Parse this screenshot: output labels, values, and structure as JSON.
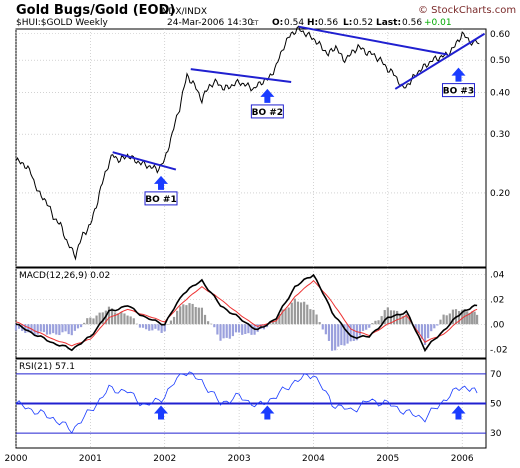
{
  "header": {
    "title": "Gold Bugs/Gold (EOD)",
    "exchange": "INDX/INDX",
    "date": "24-Mar-2006 14:30",
    "tz": "ET",
    "open_label": "O:",
    "open": "0.54",
    "high_label": "H:",
    "high": "0.56",
    "low_label": "L:",
    "low": "0.52",
    "last_label": "Last:",
    "last": "0.56",
    "change": "+0.01",
    "symbol": "$HUI:$GOLD Weekly",
    "copyright": "© StockCharts.com"
  },
  "chart_data": [
    {
      "type": "line",
      "panel": "price",
      "scale": "log",
      "ylim": [
        0.12,
        0.62
      ],
      "yticks": [
        "0.60",
        "0.50",
        "0.40",
        "0.30",
        "0.20"
      ],
      "ytick_values": [
        0.6,
        0.5,
        0.4,
        0.3,
        0.2
      ],
      "x": [
        2000.0,
        2000.1,
        2000.2,
        2000.3,
        2000.4,
        2000.5,
        2000.6,
        2000.7,
        2000.8,
        2000.9,
        2001.0,
        2001.1,
        2001.2,
        2001.3,
        2001.4,
        2001.5,
        2001.6,
        2001.7,
        2001.8,
        2001.9,
        2002.0,
        2002.1,
        2002.2,
        2002.3,
        2002.4,
        2002.5,
        2002.6,
        2002.7,
        2002.8,
        2002.9,
        2003.0,
        2003.1,
        2003.2,
        2003.3,
        2003.4,
        2003.5,
        2003.6,
        2003.7,
        2003.8,
        2003.9,
        2004.0,
        2004.1,
        2004.2,
        2004.3,
        2004.4,
        2004.5,
        2004.6,
        2004.7,
        2004.8,
        2004.9,
        2005.0,
        2005.1,
        2005.2,
        2005.3,
        2005.4,
        2005.5,
        2005.6,
        2005.7,
        2005.8,
        2005.9,
        2006.0,
        2006.1,
        2006.23
      ],
      "values": [
        0.25,
        0.245,
        0.23,
        0.2,
        0.19,
        0.17,
        0.16,
        0.14,
        0.13,
        0.15,
        0.16,
        0.19,
        0.23,
        0.26,
        0.25,
        0.26,
        0.25,
        0.245,
        0.24,
        0.235,
        0.25,
        0.3,
        0.36,
        0.45,
        0.42,
        0.38,
        0.42,
        0.43,
        0.41,
        0.42,
        0.43,
        0.42,
        0.41,
        0.43,
        0.44,
        0.48,
        0.55,
        0.6,
        0.62,
        0.6,
        0.58,
        0.55,
        0.52,
        0.55,
        0.5,
        0.52,
        0.55,
        0.53,
        0.52,
        0.5,
        0.47,
        0.45,
        0.41,
        0.43,
        0.46,
        0.48,
        0.5,
        0.51,
        0.52,
        0.55,
        0.6,
        0.57,
        0.56
      ],
      "trendlines": [
        {
          "x": [
            2001.3,
            2002.15
          ],
          "y": [
            0.265,
            0.235
          ]
        },
        {
          "x": [
            2002.35,
            2003.7
          ],
          "y": [
            0.47,
            0.43
          ]
        },
        {
          "x": [
            2003.8,
            2005.8
          ],
          "y": [
            0.63,
            0.52
          ]
        },
        {
          "x": [
            2005.1,
            2006.3
          ],
          "y": [
            0.41,
            0.6
          ]
        }
      ],
      "annotations": [
        {
          "label": "BO #1",
          "x": 2001.95,
          "y": 0.225
        },
        {
          "label": "BO #2",
          "x": 2003.38,
          "y": 0.41
        },
        {
          "label": "BO #3",
          "x": 2005.95,
          "y": 0.475
        }
      ]
    },
    {
      "type": "line",
      "panel": "macd",
      "title": "MACD(12,26,9) 0.02",
      "ylim": [
        -0.027,
        0.045
      ],
      "yticks": [
        ".04",
        ".02",
        ".00",
        "-.02"
      ],
      "ytick_values": [
        0.04,
        0.02,
        0.0,
        -0.02
      ],
      "x": [
        2000.0,
        2000.25,
        2000.5,
        2000.75,
        2001.0,
        2001.25,
        2001.5,
        2001.75,
        2002.0,
        2002.25,
        2002.5,
        2002.75,
        2003.0,
        2003.25,
        2003.5,
        2003.75,
        2004.0,
        2004.25,
        2004.5,
        2004.75,
        2005.0,
        2005.25,
        2005.5,
        2005.75,
        2006.0,
        2006.2
      ],
      "series": [
        {
          "values": [
            0.0,
            -0.008,
            -0.015,
            -0.02,
            -0.01,
            0.01,
            0.015,
            0.005,
            0.0,
            0.025,
            0.035,
            0.015,
            0.005,
            -0.005,
            0.005,
            0.03,
            0.04,
            0.01,
            -0.01,
            -0.01,
            0.005,
            0.01,
            -0.02,
            -0.005,
            0.01,
            0.015
          ]
        },
        {
          "values": [
            0.002,
            -0.005,
            -0.012,
            -0.017,
            -0.012,
            0.005,
            0.012,
            0.007,
            0.002,
            0.018,
            0.03,
            0.02,
            0.008,
            -0.002,
            0.003,
            0.022,
            0.035,
            0.018,
            -0.004,
            -0.009,
            0.0,
            0.007,
            -0.014,
            -0.008,
            0.005,
            0.012
          ]
        }
      ]
    },
    {
      "type": "line",
      "panel": "rsi",
      "title": "RSI(21) 57.1",
      "ylim": [
        20,
        80
      ],
      "yticks": [
        "70",
        "50",
        "30"
      ],
      "ytick_values": [
        70,
        50,
        30
      ],
      "x": [
        2000.0,
        2000.25,
        2000.5,
        2000.75,
        2001.0,
        2001.25,
        2001.5,
        2001.75,
        2002.0,
        2002.25,
        2002.5,
        2002.75,
        2003.0,
        2003.25,
        2003.5,
        2003.75,
        2004.0,
        2004.25,
        2004.5,
        2004.75,
        2005.0,
        2005.25,
        2005.5,
        2005.75,
        2006.0,
        2006.2
      ],
      "values": [
        50,
        45,
        40,
        32,
        45,
        60,
        58,
        48,
        55,
        72,
        65,
        50,
        55,
        48,
        55,
        65,
        70,
        50,
        45,
        52,
        50,
        44,
        40,
        52,
        62,
        57
      ],
      "arrows_x": [
        2001.95,
        2003.38,
        2005.95
      ]
    },
    {
      "type": "axis",
      "xticks": [
        "2000",
        "2001",
        "2002",
        "2003",
        "2004",
        "2005",
        "2006"
      ],
      "xtick_values": [
        2000,
        2001,
        2002,
        2003,
        2004,
        2005,
        2006
      ]
    }
  ],
  "colors": {
    "price_line": "#000000",
    "trendline": "#2020d0",
    "arrow": "#1a3cff",
    "macd_histogram": "#9a9a9a",
    "macd_histogram_negative": "#9aa0dd",
    "macd_signal": "#ee3333",
    "rsi_line": "#1a3cff",
    "grid": "#b8b8b8",
    "panel_background": "#ffffff",
    "page_background": "#ffffff"
  }
}
